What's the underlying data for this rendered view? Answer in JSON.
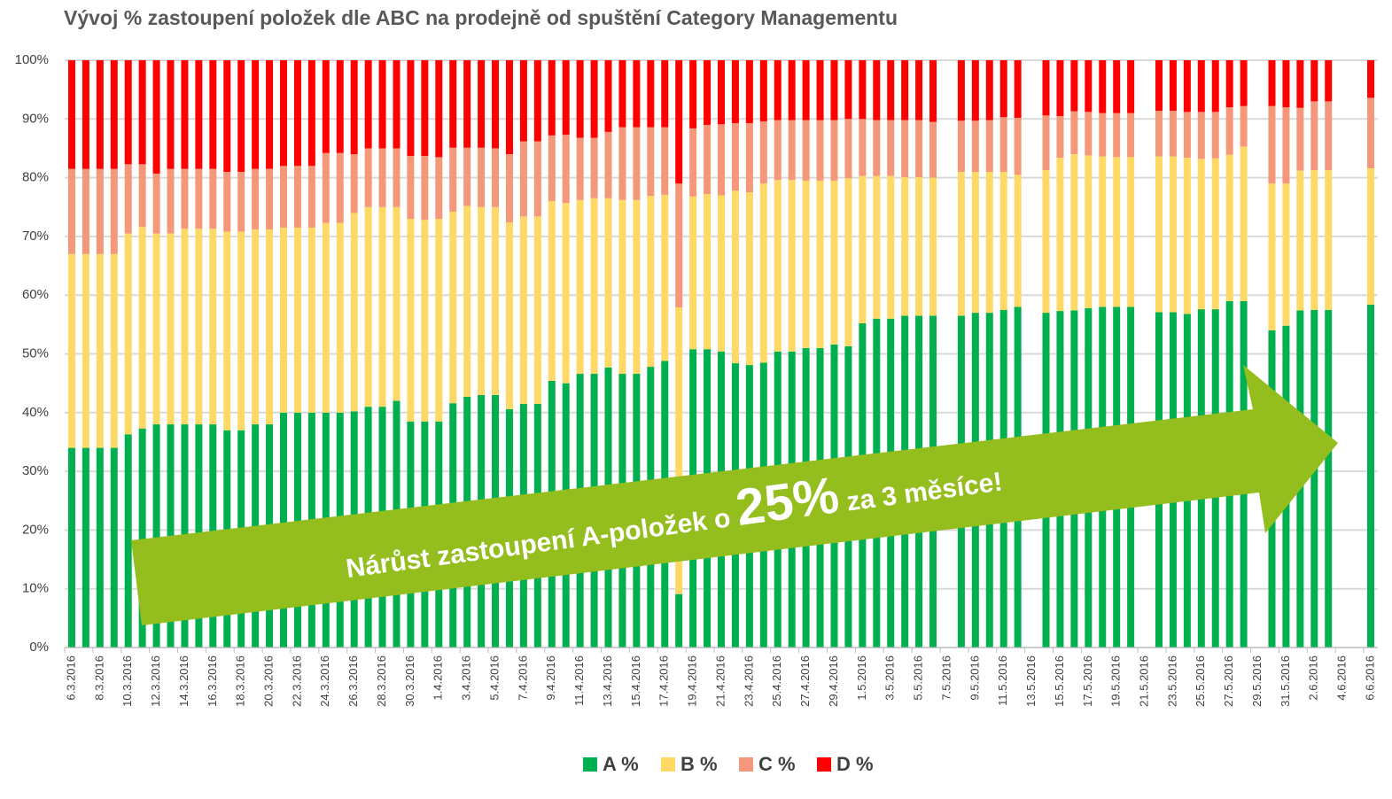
{
  "chart_data": {
    "type": "stacked_bar",
    "title": "Vývoj % zastoupení položek dle ABC na prodejně od spuštění Category Managementu",
    "categories": [
      "6.3.2016",
      null,
      "8.3.2016",
      null,
      "10.3.2016",
      null,
      "12.3.2016",
      null,
      "14.3.2016",
      null,
      "16.3.2016",
      null,
      "18.3.2016",
      null,
      "20.3.2016",
      null,
      "22.3.2016",
      null,
      "24.3.2016",
      null,
      "26.3.2016",
      null,
      "28.3.2016",
      null,
      "30.3.2016",
      null,
      "1.4.2016",
      null,
      "3.4.2016",
      null,
      "5.4.2016",
      null,
      "7.4.2016",
      null,
      "9.4.2016",
      null,
      "11.4.2016",
      null,
      "13.4.2016",
      null,
      "15.4.2016",
      null,
      "17.4.2016",
      null,
      "19.4.2016",
      null,
      "21.4.2016",
      null,
      "23.4.2016",
      null,
      "25.4.2016",
      null,
      "27.4.2016",
      null,
      "29.4.2016",
      null,
      "1.5.2016",
      null,
      "3.5.2016",
      null,
      "5.5.2016",
      null,
      "7.5.2016",
      null,
      "9.5.2016",
      null,
      "11.5.2016",
      null,
      "13.5.2016",
      null,
      "15.5.2016",
      null,
      "17.5.2016",
      null,
      "19.5.2016",
      null,
      "21.5.2016",
      null,
      "23.5.2016",
      null,
      "25.5.2016",
      null,
      "27.5.2016",
      null,
      "29.5.2016",
      null,
      "31.5.2016",
      null,
      "2.6.2016",
      null,
      "4.6.2016",
      null,
      "6.6.2016"
    ],
    "series": [
      {
        "name": "A %",
        "color": "#00b050",
        "values": [
          34,
          34,
          34,
          34,
          36.3,
          37.3,
          38,
          38,
          38,
          38,
          38,
          37,
          37,
          38,
          38,
          40,
          40,
          40,
          40,
          40,
          40.2,
          41,
          41,
          42,
          38.5,
          38.5,
          38.5,
          41.6,
          42.7,
          43,
          43,
          40.6,
          41.5,
          41.5,
          45.4,
          45,
          46.6,
          46.6,
          47.7,
          46.6,
          46.6,
          47.8,
          48.8,
          9.1,
          50.8,
          50.8,
          50.4,
          48.4,
          48.1,
          48.5,
          50.4,
          50.4,
          51,
          51,
          51.6,
          51.3,
          55.2,
          56,
          56,
          56.5,
          56.5,
          56.5,
          null,
          56.5,
          57,
          57,
          57.5,
          58,
          null,
          57,
          57.3,
          57.4,
          57.8,
          58,
          58,
          58,
          null,
          57.1,
          57.1,
          56.8,
          57.6,
          57.6,
          59,
          59,
          null,
          54,
          54.8,
          57.4,
          57.5,
          57.5,
          null,
          null,
          58.4
        ]
      },
      {
        "name": "B %",
        "color": "#ffd966",
        "values": [
          33,
          33,
          33,
          33,
          34.2,
          34.3,
          32.5,
          32.5,
          33.3,
          33.3,
          33.3,
          33.8,
          33.8,
          33.2,
          33.2,
          31.5,
          31.5,
          31.5,
          32.3,
          32.3,
          33.8,
          34,
          34,
          33,
          34.5,
          34.3,
          34.5,
          32.6,
          32.5,
          32,
          32,
          31.8,
          31.9,
          31.9,
          30.6,
          30.7,
          29.6,
          29.9,
          28.8,
          29.6,
          29.6,
          29.1,
          28.3,
          48.8,
          26,
          26.4,
          26.6,
          29.4,
          29.4,
          30.5,
          29.2,
          29.2,
          28.5,
          28.5,
          27.9,
          28.6,
          25.1,
          24.3,
          24.3,
          23.6,
          23.6,
          23.5,
          null,
          24.5,
          24,
          24,
          23.5,
          22.5,
          null,
          24.3,
          26.1,
          26.6,
          26,
          25.6,
          25.5,
          25.5,
          null,
          26.5,
          26.5,
          26.6,
          25.6,
          25.7,
          24.9,
          26.3,
          null,
          25,
          24.2,
          23.8,
          23.8,
          23.8,
          null,
          null,
          23.2
        ]
      },
      {
        "name": "C %",
        "color": "#f4977a",
        "values": [
          14.5,
          14.5,
          14.5,
          14.5,
          11.8,
          10.7,
          10.2,
          11,
          10.2,
          10.2,
          10.2,
          10.2,
          10.2,
          10.3,
          10.3,
          10.5,
          10.5,
          10.5,
          11.9,
          11.9,
          10,
          10,
          10,
          10,
          10.7,
          10.9,
          10.5,
          10.9,
          9.9,
          10.1,
          10,
          11.6,
          12.8,
          12.8,
          11.2,
          11.6,
          10.6,
          10.3,
          11.3,
          12.4,
          12.4,
          11.7,
          11.5,
          21.1,
          11.6,
          11.8,
          12.1,
          11.5,
          11.8,
          10.6,
          10.2,
          10.2,
          10.3,
          10.3,
          10.3,
          10.1,
          9.7,
          9.5,
          9.5,
          9.7,
          9.7,
          9.5,
          null,
          8.7,
          8.7,
          8.8,
          9.3,
          9.7,
          null,
          9.3,
          7.1,
          7.3,
          7.4,
          7.4,
          7.5,
          7.5,
          null,
          7.8,
          7.8,
          7.8,
          8,
          7.9,
          8.1,
          6.9,
          null,
          13.2,
          13,
          10.7,
          11.7,
          11.7,
          null,
          null,
          12
        ]
      },
      {
        "name": "D %",
        "color": "#ff0000",
        "values": [
          18.5,
          18.5,
          18.5,
          18.5,
          17.7,
          17.7,
          19.3,
          18.5,
          18.5,
          18.5,
          18.5,
          19,
          19,
          18.5,
          18.5,
          18,
          18,
          18,
          15.8,
          15.8,
          16,
          15,
          15,
          15,
          16.3,
          16.3,
          16.5,
          14.9,
          14.9,
          14.9,
          15,
          16,
          13.8,
          13.8,
          12.8,
          12.7,
          13.2,
          13.2,
          12.2,
          11.4,
          11.4,
          11.4,
          11.4,
          21,
          11.6,
          11,
          10.9,
          10.7,
          10.7,
          10.4,
          10.2,
          10.2,
          10.2,
          10.2,
          10.2,
          10,
          10,
          10.2,
          10.2,
          10.2,
          10.2,
          10.5,
          null,
          10.3,
          10.3,
          10.2,
          9.7,
          9.8,
          null,
          9.4,
          9.5,
          8.7,
          8.8,
          9,
          9,
          9,
          null,
          8.6,
          8.6,
          8.8,
          8.8,
          8.8,
          8,
          7.8,
          null,
          7.8,
          8,
          8.1,
          7,
          7,
          null,
          null,
          6.4
        ]
      }
    ],
    "ylim": [
      0,
      100
    ],
    "yticks": [
      {
        "value": 0,
        "label": "0%"
      },
      {
        "value": 10,
        "label": "10%"
      },
      {
        "value": 20,
        "label": "20%"
      },
      {
        "value": 30,
        "label": "30%"
      },
      {
        "value": 40,
        "label": "40%"
      },
      {
        "value": 50,
        "label": "50%"
      },
      {
        "value": 60,
        "label": "60%"
      },
      {
        "value": 70,
        "label": "70%"
      },
      {
        "value": 80,
        "label": "80%"
      },
      {
        "value": 90,
        "label": "90%"
      },
      {
        "value": 100,
        "label": "100%"
      }
    ],
    "grid": true,
    "legend": "bottom",
    "annotation": {
      "parts": [
        "Nárůst zastoupení A-položek o ",
        "25%",
        " za 3 měsíce!"
      ],
      "color": "#94bd1e"
    }
  }
}
